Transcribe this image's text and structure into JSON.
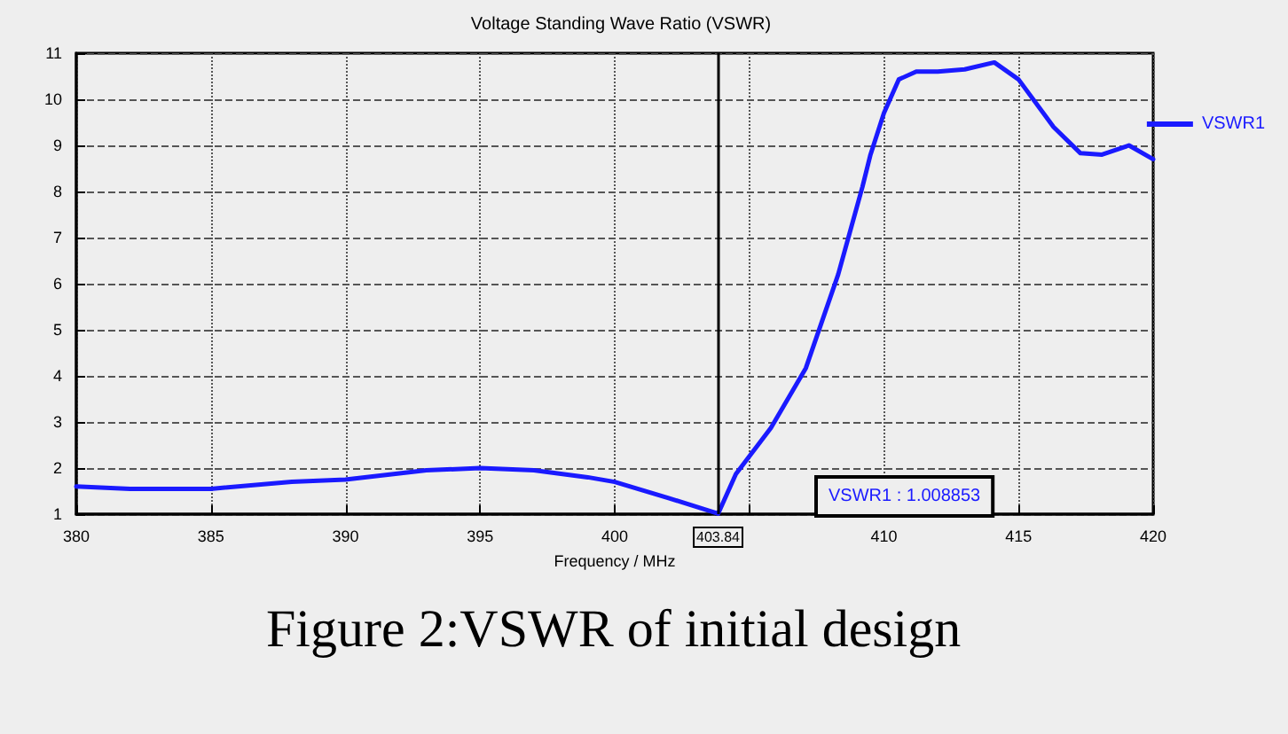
{
  "chart_data": {
    "type": "line",
    "title": "Voltage Standing Wave Ratio (VSWR)",
    "xlabel": "Frequency / MHz",
    "x": [
      380,
      382,
      385,
      388,
      390,
      393,
      395,
      397,
      399,
      400,
      402,
      403.84,
      404.5,
      405.8,
      407.1,
      408.3,
      409.2,
      409.5,
      410,
      410.55,
      411.2,
      412,
      413,
      414.1,
      415,
      416.3,
      417.3,
      418.1,
      419.1,
      420
    ],
    "series": [
      {
        "name": "VSWR1",
        "color": "#1a1aff",
        "values": [
          1.6,
          1.55,
          1.55,
          1.7,
          1.75,
          1.95,
          2.0,
          1.95,
          1.8,
          1.7,
          1.35,
          1.01,
          1.87,
          2.87,
          4.17,
          6.2,
          8.1,
          8.8,
          9.7,
          10.43,
          10.6,
          10.6,
          10.65,
          10.8,
          10.43,
          9.4,
          8.83,
          8.8,
          9.0,
          8.7
        ]
      }
    ],
    "xlim": [
      380,
      420
    ],
    "xticks": [
      380,
      385,
      390,
      395,
      400,
      {
        "value": 405,
        "label": null
      },
      410,
      415,
      420
    ],
    "ylim": [
      1,
      11
    ],
    "yticks": [
      1,
      2,
      3,
      4,
      5,
      6,
      7,
      8,
      9,
      10,
      11
    ],
    "grid": true,
    "legend": "right",
    "marker": "none",
    "line_style": "solid",
    "ref_lines": [
      {
        "axis": "x",
        "value": 403.84,
        "label": "403.84",
        "color": "#000000"
      }
    ],
    "annotations": [
      "VSWR1 : 1.008853",
      "Figure 2:VSWR of initial design"
    ]
  }
}
